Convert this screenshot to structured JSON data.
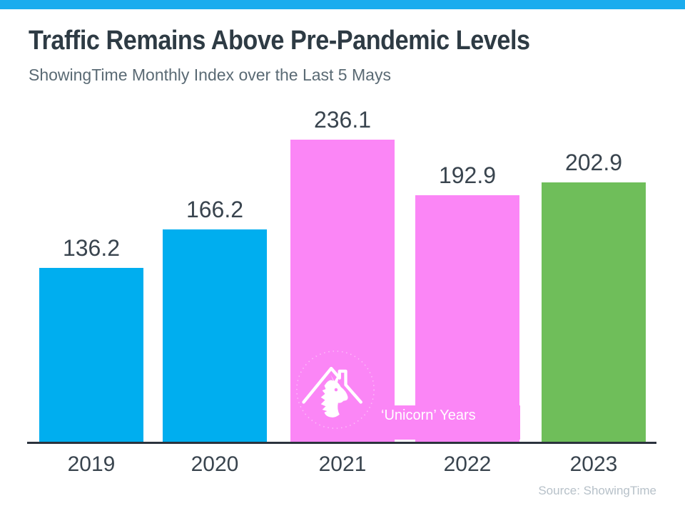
{
  "header": {
    "title": "Traffic Remains Above Pre-Pandemic Levels",
    "subtitle": "ShowingTime Monthly Index over the Last 5 Mays"
  },
  "chart_data": {
    "type": "bar",
    "title": "Traffic Remains Above Pre-Pandemic Levels",
    "subtitle": "ShowingTime Monthly Index over the Last 5 Mays",
    "categories": [
      "2019",
      "2020",
      "2021",
      "2022",
      "2023"
    ],
    "values": [
      136.2,
      166.2,
      236.1,
      192.9,
      202.9
    ],
    "value_labels": [
      "136.2",
      "166.2",
      "236.1",
      "192.9",
      "202.9"
    ],
    "bar_colors": [
      "#00AEEF",
      "#00AEEF",
      "#FB86F6",
      "#FB86F6",
      "#6FBE5A"
    ],
    "xlabel": "",
    "ylabel": "",
    "ylim": [
      0,
      260
    ],
    "grid": false,
    "legend": false,
    "data_labels": true,
    "highlight_group": {
      "label": "‘Unicorn’ Years",
      "categories": [
        "2021",
        "2022"
      ],
      "color": "#FB86F6"
    }
  },
  "annotation": {
    "unicorn_years_label": "‘Unicorn’ Years"
  },
  "footer": {
    "source": "Source: ShowingTime"
  },
  "colors": {
    "top_accent": "#1BACEE",
    "blue_bar": "#00AEEF",
    "pink_bar": "#FB86F6",
    "green_bar": "#6FBE5A",
    "axis": "#2B333D",
    "title_text": "#2E3B44",
    "subtitle_text": "#5A6A74",
    "label_text": "#39444E",
    "source_text": "#B7C1C9"
  },
  "icons": {
    "logo": "unicorn-house-icon"
  }
}
